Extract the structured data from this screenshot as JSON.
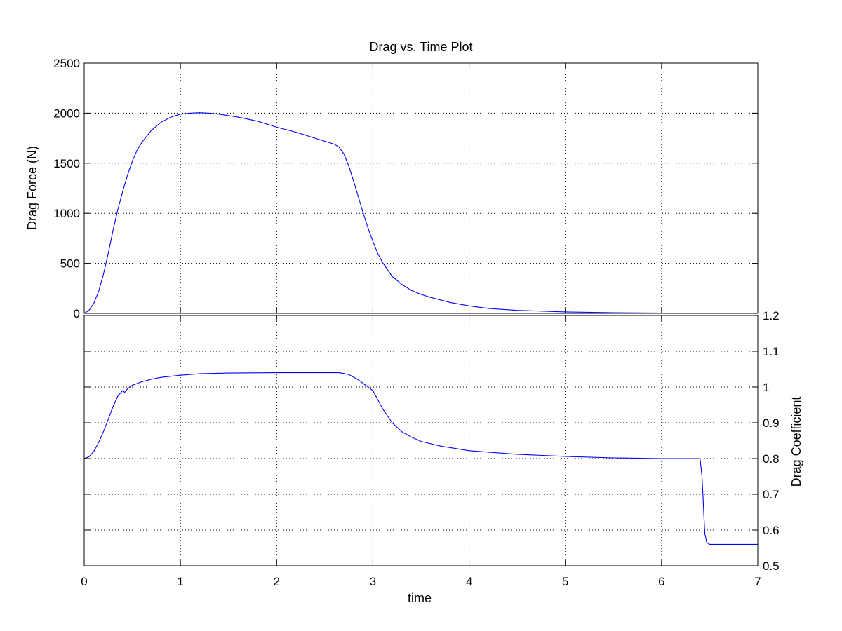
{
  "chart_data": [
    {
      "type": "line",
      "title": "Drag vs. Time Plot",
      "xlabel": "",
      "ylabel": "Drag Force (N)",
      "xlim": [
        0,
        7
      ],
      "ylim": [
        0,
        2500
      ],
      "xticks": [
        0,
        1,
        2,
        3,
        4,
        5,
        6,
        7
      ],
      "yticks": [
        0,
        500,
        1000,
        1500,
        2000,
        2500
      ],
      "ytick_labels": [
        "0",
        "500",
        "1000",
        "1500",
        "2000",
        "2500"
      ],
      "grid": true,
      "color": "#0000ff",
      "series": [
        {
          "x": [
            0,
            0.05,
            0.1,
            0.15,
            0.2,
            0.25,
            0.3,
            0.35,
            0.4,
            0.45,
            0.5,
            0.55,
            0.6,
            0.7,
            0.8,
            0.9,
            1.0,
            1.1,
            1.2,
            1.3,
            1.4,
            1.6,
            1.8,
            2.0,
            2.2,
            2.4,
            2.6,
            2.65,
            2.7,
            2.75,
            2.8,
            2.85,
            2.9,
            2.95,
            3.0,
            3.05,
            3.1,
            3.2,
            3.3,
            3.4,
            3.5,
            3.6,
            3.8,
            4.0,
            4.2,
            4.5,
            5.0,
            5.5,
            6.0,
            6.5,
            7.0
          ],
          "y": [
            0,
            30,
            100,
            220,
            390,
            600,
            830,
            1040,
            1220,
            1380,
            1520,
            1630,
            1710,
            1830,
            1910,
            1960,
            1990,
            2000,
            2005,
            2000,
            1990,
            1960,
            1920,
            1860,
            1810,
            1750,
            1690,
            1660,
            1590,
            1470,
            1320,
            1160,
            1000,
            850,
            720,
            600,
            510,
            370,
            290,
            230,
            190,
            160,
            110,
            75,
            50,
            30,
            15,
            7,
            3,
            2,
            1
          ]
        }
      ]
    },
    {
      "type": "line",
      "title": "",
      "xlabel": "time",
      "ylabel": "Drag Coefficient",
      "xlim": [
        0,
        7
      ],
      "ylim": [
        0.5,
        1.2
      ],
      "xticks": [
        0,
        1,
        2,
        3,
        4,
        5,
        6,
        7
      ],
      "xtick_labels": [
        "0",
        "1",
        "2",
        "3",
        "4",
        "5",
        "6",
        "7"
      ],
      "yticks": [
        0.5,
        0.6,
        0.7,
        0.8,
        0.9,
        1.0,
        1.1,
        1.2
      ],
      "ytick_labels": [
        "0.5",
        "0.6",
        "0.7",
        "0.8",
        "0.9",
        "1",
        "1.1",
        "1.2"
      ],
      "yaxis_position": "right",
      "grid": true,
      "color": "#0000ff",
      "series": [
        {
          "x": [
            0,
            0.05,
            0.1,
            0.15,
            0.2,
            0.25,
            0.3,
            0.35,
            0.4,
            0.42,
            0.45,
            0.5,
            0.6,
            0.7,
            0.8,
            0.9,
            1.0,
            1.2,
            1.5,
            2.0,
            2.5,
            2.65,
            2.75,
            2.85,
            2.95,
            3.0,
            3.05,
            3.1,
            3.2,
            3.3,
            3.4,
            3.5,
            3.7,
            4.0,
            4.5,
            5.0,
            5.5,
            6.0,
            6.4,
            6.42,
            6.43,
            6.44,
            6.45,
            6.47,
            6.5,
            7.0
          ],
          "y": [
            0.8,
            0.805,
            0.82,
            0.845,
            0.875,
            0.91,
            0.945,
            0.975,
            0.99,
            0.985,
            0.995,
            1.005,
            1.015,
            1.022,
            1.027,
            1.03,
            1.033,
            1.037,
            1.039,
            1.04,
            1.04,
            1.04,
            1.035,
            1.02,
            1.0,
            0.99,
            0.965,
            0.94,
            0.9,
            0.875,
            0.86,
            0.848,
            0.835,
            0.822,
            0.812,
            0.806,
            0.802,
            0.8,
            0.8,
            0.75,
            0.7,
            0.64,
            0.59,
            0.565,
            0.56,
            0.56
          ]
        }
      ]
    }
  ]
}
